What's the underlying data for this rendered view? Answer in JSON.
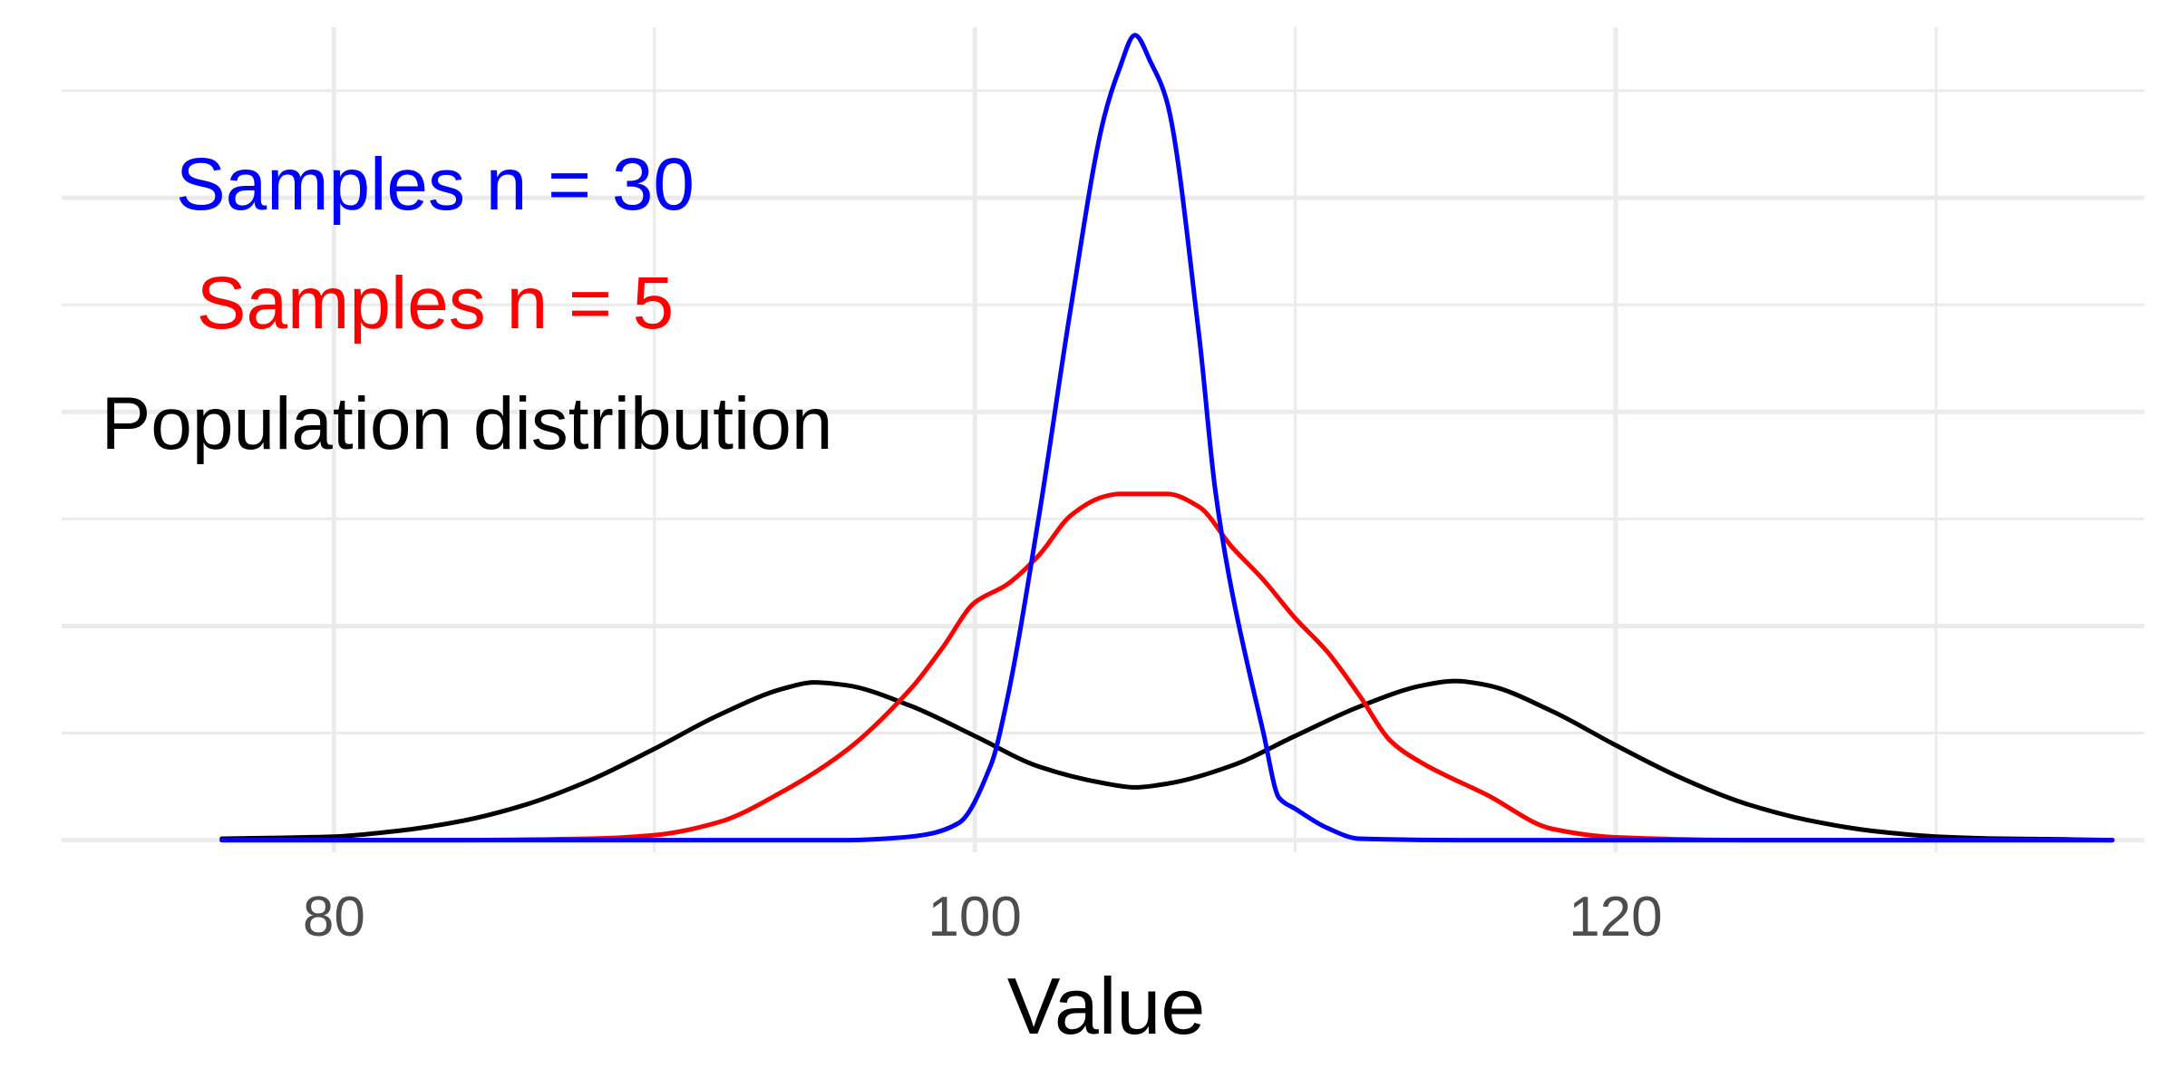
{
  "chart_data": {
    "type": "line",
    "title": "",
    "xlabel": "Value",
    "ylabel": "",
    "xlim": [
      71.5,
      136.5
    ],
    "ylim": [
      -0.0017,
      0.1139
    ],
    "x_ticks": [
      80,
      100,
      120
    ],
    "x_minor_ticks": [
      90,
      110,
      130
    ],
    "y_gridlines": [
      0,
      0.015,
      0.03,
      0.045,
      0.06,
      0.075,
      0.09,
      0.105
    ],
    "grid": true,
    "legend": "annotations-top-left",
    "series": [
      {
        "name": "Population distribution",
        "color": "#000000",
        "x": [
          76.5,
          80,
          82,
          84,
          86,
          88,
          90,
          92,
          94,
          95,
          96,
          98,
          100,
          102,
          104,
          105,
          106,
          108,
          110,
          112,
          114,
          115,
          116,
          118,
          120,
          122,
          124,
          126,
          128,
          130,
          132,
          134,
          135.5
        ],
        "y": [
          0.0002,
          0.0005,
          0.0013,
          0.0027,
          0.005,
          0.0084,
          0.0128,
          0.0175,
          0.0212,
          0.0221,
          0.0217,
          0.0188,
          0.0146,
          0.0103,
          0.008,
          0.0074,
          0.0079,
          0.0104,
          0.0146,
          0.0187,
          0.0217,
          0.0223,
          0.0217,
          0.0181,
          0.0133,
          0.0088,
          0.0052,
          0.0028,
          0.0013,
          0.0005,
          0.0002,
          0.0001,
          0.0
        ]
      },
      {
        "name": "Samples n = 5",
        "color": "#ff0000",
        "x": [
          76.5,
          84,
          88,
          90,
          92,
          94,
          96,
          98,
          99,
          100,
          101,
          102,
          103,
          104,
          104.5,
          105,
          106,
          107,
          108,
          109,
          110,
          111,
          112,
          113,
          114,
          116,
          118,
          120,
          124,
          128,
          135.5
        ],
        "y": [
          0.0,
          0.0,
          0.0002,
          0.0007,
          0.0025,
          0.0068,
          0.0126,
          0.0212,
          0.027,
          0.0333,
          0.0358,
          0.0399,
          0.0455,
          0.0481,
          0.0485,
          0.0485,
          0.0485,
          0.0467,
          0.0412,
          0.0365,
          0.0311,
          0.0264,
          0.0203,
          0.0138,
          0.0107,
          0.0063,
          0.0016,
          0.0004,
          0.0,
          0.0,
          0.0
        ]
      },
      {
        "name": "Samples n = 30",
        "color": "#0000ff",
        "x": [
          76.5,
          90,
          96,
          97.5,
          98.5,
          99.5,
          100.5,
          101,
          102,
          103,
          104,
          104.5,
          105,
          105.5,
          106,
          107,
          107.5,
          108,
          109,
          109.5,
          110,
          111,
          112,
          115,
          135.5
        ],
        "y": [
          0.0,
          0.0,
          0.0,
          0.0003,
          0.0008,
          0.0024,
          0.0105,
          0.0195,
          0.0453,
          0.0747,
          0.1006,
          0.1079,
          0.1128,
          0.1089,
          0.1034,
          0.0707,
          0.0492,
          0.0354,
          0.0152,
          0.0059,
          0.0044,
          0.0017,
          0.0002,
          0.0,
          0.0
        ]
      }
    ]
  }
}
